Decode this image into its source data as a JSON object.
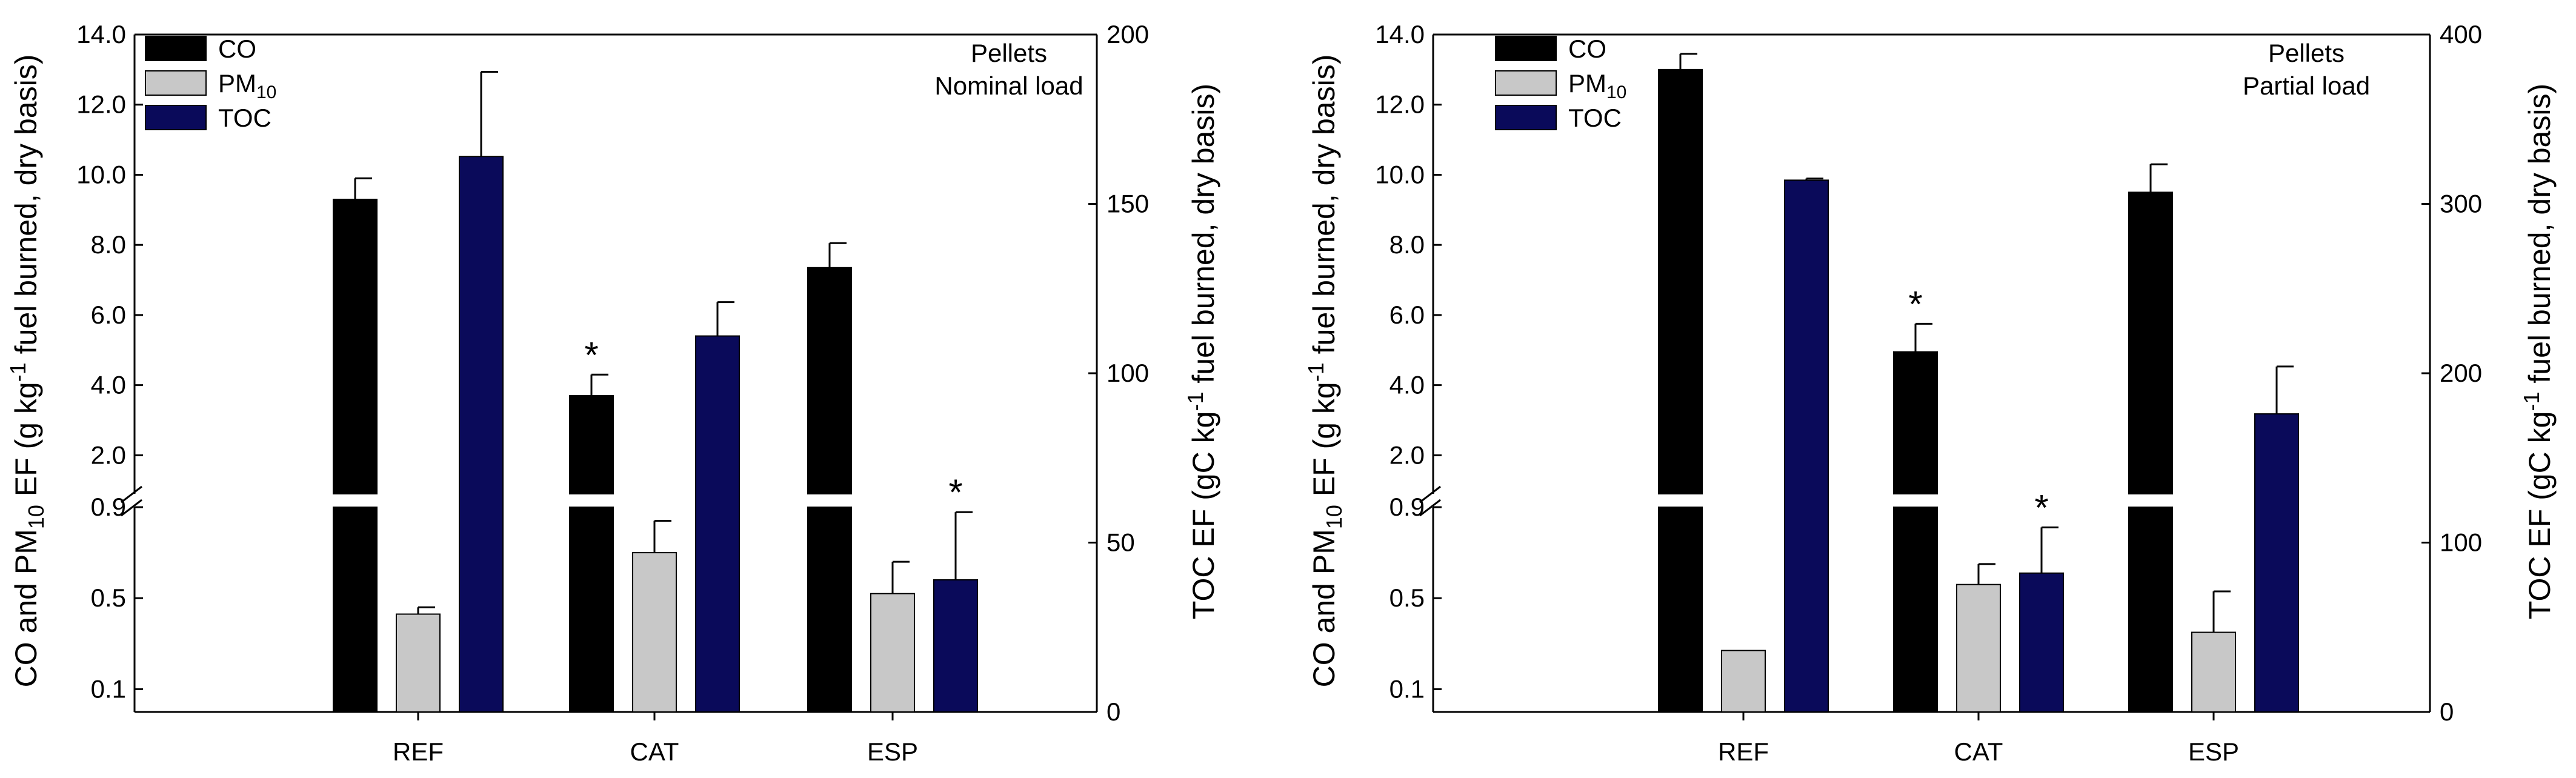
{
  "charts": [
    {
      "panel_note_line1": "Pellets",
      "panel_note_line2": "Nominal load",
      "left_axis_title": {
        "pre": "CO and PM",
        "sub1": "10",
        "mid": " EF (g kg",
        "sup": "-1",
        "post": " fuel burned, dry basis)"
      },
      "right_axis_title": {
        "pre": "TOC EF (gC kg",
        "sup": "-1",
        "post": " fuel burned, dry basis)"
      }
    },
    {
      "panel_note_line1": "Pellets",
      "panel_note_line2": "Partial load",
      "left_axis_title": {
        "pre": "CO and PM",
        "sub1": "10",
        "mid": " EF (g kg",
        "sup": "-1",
        "post": " fuel burned, dry basis)"
      },
      "right_axis_title": {
        "pre": "TOC EF (gC kg",
        "sup": "-1",
        "post": " fuel burned, dry basis)"
      }
    }
  ],
  "legend": [
    {
      "label": "CO",
      "sub": "",
      "color": "#000000"
    },
    {
      "label": "PM",
      "sub": "10",
      "color": "#c8c8c8"
    },
    {
      "label": "TOC",
      "sub": "",
      "color": "#0a0a5a"
    }
  ],
  "chart_data": [
    {
      "type": "bar",
      "title": "Pellets Nominal load",
      "categories": [
        "REF",
        "CAT",
        "ESP"
      ],
      "y_left": {
        "label": "CO and PM10 EF (g kg-1 fuel burned, dry basis)",
        "broken_axis": true,
        "lower_segment_ticks": [
          "0.1",
          "0.5",
          "0.9"
        ],
        "lower_segment_range": [
          0,
          0.9
        ],
        "upper_segment_ticks": [
          "2.0",
          "4.0",
          "6.0",
          "8.0",
          "10.0",
          "12.0",
          "14.0"
        ],
        "upper_segment_range": [
          0.9,
          14.0
        ]
      },
      "y_right": {
        "label": "TOC EF (gC kg-1 fuel burned, dry basis)",
        "ticks": [
          "0",
          "50",
          "100",
          "150",
          "200"
        ],
        "range": [
          0,
          200
        ]
      },
      "series": [
        {
          "name": "CO",
          "axis": "left",
          "values": [
            9.3,
            3.7,
            7.35
          ],
          "errors": [
            0.6,
            0.6,
            0.7
          ],
          "significant": [
            false,
            true,
            false
          ]
        },
        {
          "name": "PM10",
          "axis": "left",
          "values": [
            0.43,
            0.7,
            0.52
          ],
          "errors": [
            0.03,
            0.14,
            0.14
          ],
          "significant": [
            false,
            false,
            false
          ]
        },
        {
          "name": "TOC",
          "axis": "right",
          "values": [
            164,
            111,
            39
          ],
          "errors": [
            25,
            10,
            20
          ],
          "significant": [
            false,
            false,
            true
          ]
        }
      ]
    },
    {
      "type": "bar",
      "title": "Pellets Partial load",
      "categories": [
        "REF",
        "CAT",
        "ESP"
      ],
      "y_left": {
        "label": "CO and PM10 EF (g kg-1 fuel burned, dry basis)",
        "broken_axis": true,
        "lower_segment_ticks": [
          "0.1",
          "0.5",
          "0.9"
        ],
        "lower_segment_range": [
          0,
          0.9
        ],
        "upper_segment_ticks": [
          "2.0",
          "4.0",
          "6.0",
          "8.0",
          "10.0",
          "12.0",
          "14.0"
        ],
        "upper_segment_range": [
          0.9,
          14.0
        ]
      },
      "y_right": {
        "label": "TOC EF (gC kg-1 fuel burned, dry basis)",
        "ticks": [
          "0",
          "100",
          "200",
          "300",
          "400"
        ],
        "range": [
          0,
          400
        ]
      },
      "series": [
        {
          "name": "CO",
          "axis": "left",
          "values": [
            13.0,
            4.95,
            9.5
          ],
          "errors": [
            0.45,
            0.8,
            0.8
          ],
          "significant": [
            false,
            true,
            false
          ]
        },
        {
          "name": "PM10",
          "axis": "left",
          "values": [
            0.27,
            0.56,
            0.35
          ],
          "errors": [
            0.0,
            0.09,
            0.18
          ],
          "significant": [
            false,
            false,
            false
          ]
        },
        {
          "name": "TOC",
          "axis": "right",
          "values": [
            314,
            82,
            176
          ],
          "errors": [
            1,
            27,
            28
          ],
          "significant": [
            false,
            true,
            false
          ]
        }
      ]
    }
  ]
}
